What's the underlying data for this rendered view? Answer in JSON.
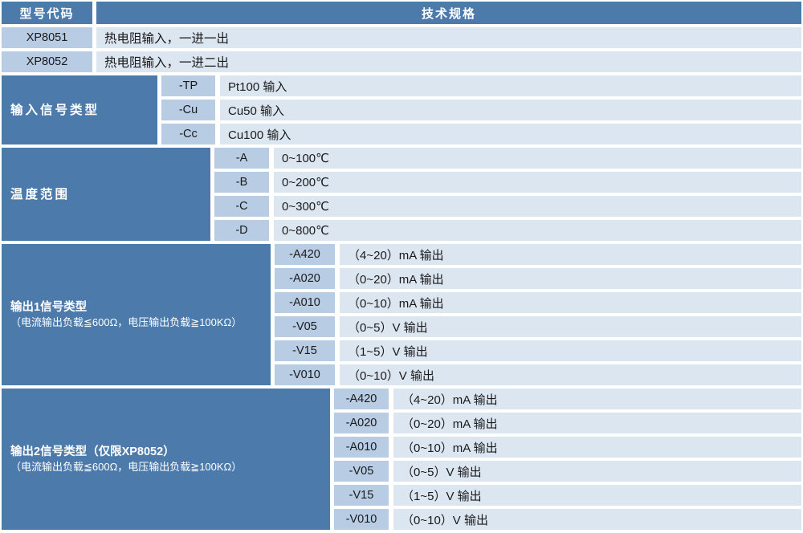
{
  "palette": {
    "dark": "#4B7AAB",
    "medium": "#B8CCE4",
    "light": "#DCE6F1",
    "gap": "#FFFFFF",
    "text_on_dark": "#FFFFFF",
    "text_on_light": "#1A1A1A"
  },
  "header": {
    "model_col": "型号代码",
    "spec_col": "技术规格"
  },
  "models": [
    {
      "code": "XP8051",
      "desc": "热电阻输入，一进一出"
    },
    {
      "code": "XP8052",
      "desc": "热电阻输入，一进二出"
    }
  ],
  "sections": [
    {
      "title": "输入信号类型",
      "note": "",
      "rows": [
        {
          "code": "-TP",
          "desc": "Pt100 输入"
        },
        {
          "code": "-Cu",
          "desc": "Cu50 输入"
        },
        {
          "code": "-Cc",
          "desc": "Cu100 输入"
        }
      ]
    },
    {
      "title": "温度范围",
      "note": "",
      "rows": [
        {
          "code": "-A",
          "desc": "0~100℃"
        },
        {
          "code": "-B",
          "desc": "0~200℃"
        },
        {
          "code": "-C",
          "desc": "0~300℃"
        },
        {
          "code": "-D",
          "desc": "0~800℃"
        }
      ]
    },
    {
      "title": "输出1信号类型",
      "note": "（电流输出负载≦600Ω，电压输出负载≧100KΩ）",
      "rows": [
        {
          "code": "-A420",
          "desc": "（4~20）mA 输出"
        },
        {
          "code": "-A020",
          "desc": "（0~20）mA 输出"
        },
        {
          "code": "-A010",
          "desc": "（0~10）mA 输出"
        },
        {
          "code": "-V05",
          "desc": "（0~5）V 输出"
        },
        {
          "code": "-V15",
          "desc": "（1~5）V 输出"
        },
        {
          "code": "-V010",
          "desc": "（0~10）V 输出"
        }
      ]
    },
    {
      "title": "输出2信号类型（仅限XP8052）",
      "note": "（电流输出负载≦600Ω，电压输出负载≧100KΩ）",
      "rows": [
        {
          "code": "-A420",
          "desc": "（4~20）mA 输出"
        },
        {
          "code": "-A020",
          "desc": "（0~20）mA 输出"
        },
        {
          "code": "-A010",
          "desc": "（0~10）mA 输出"
        },
        {
          "code": "-V05",
          "desc": "（0~5）V 输出"
        },
        {
          "code": "-V15",
          "desc": "（1~5）V 输出"
        },
        {
          "code": "-V010",
          "desc": "（0~10）V 输出"
        }
      ]
    }
  ]
}
